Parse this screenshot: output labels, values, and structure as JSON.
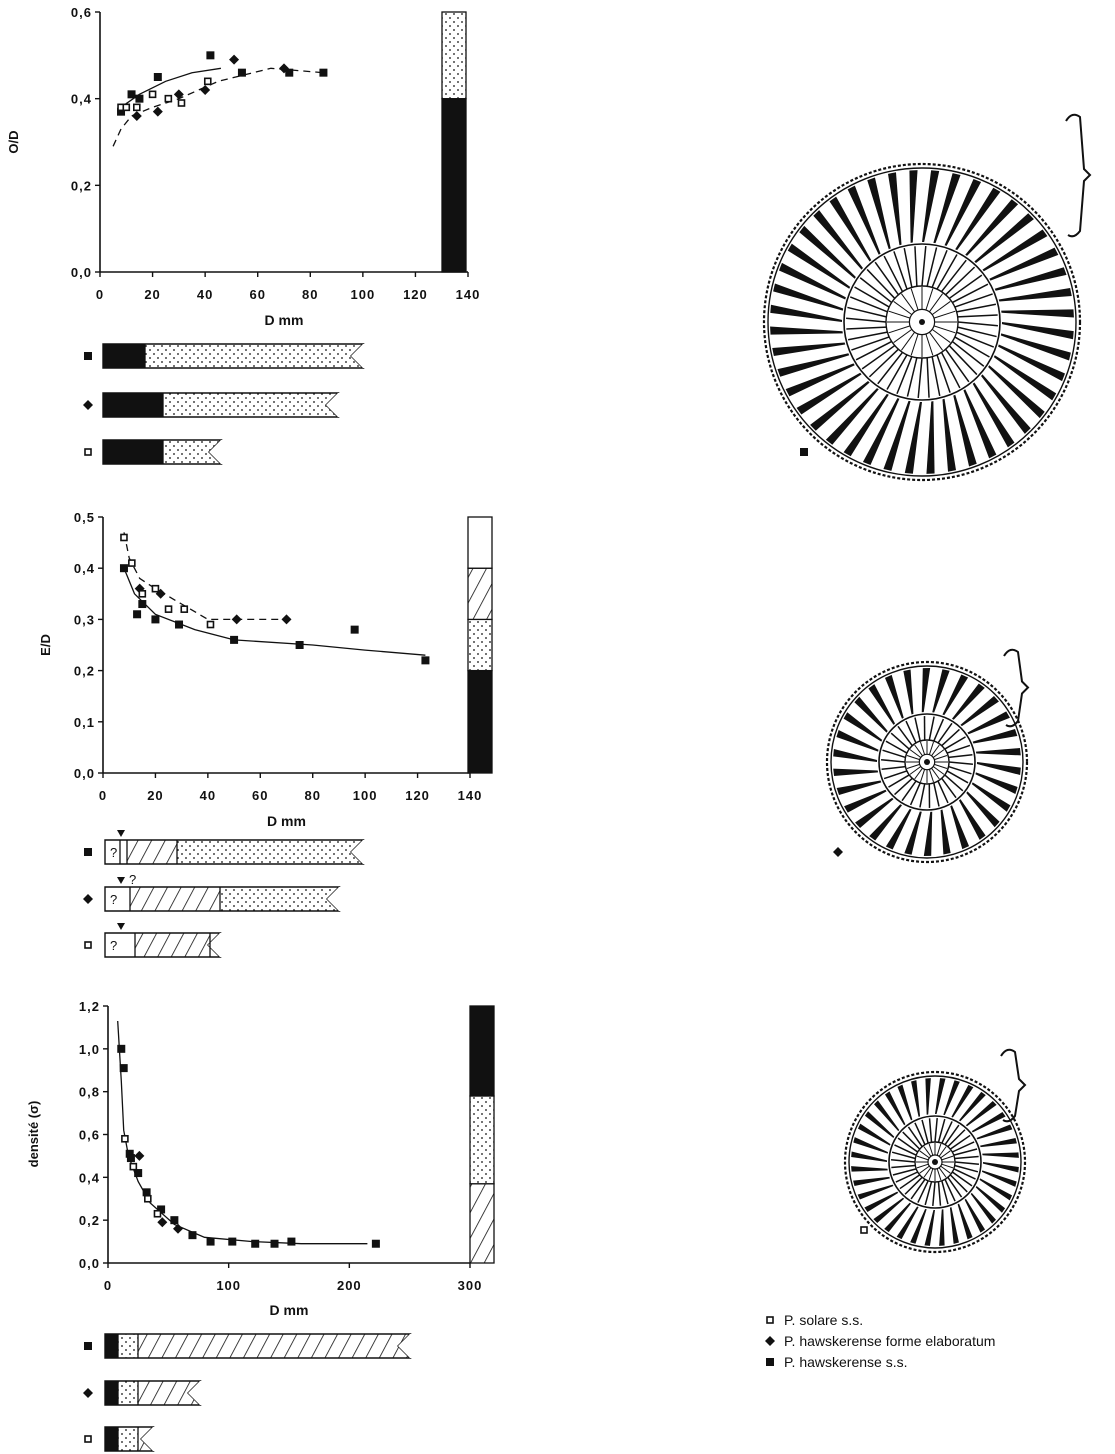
{
  "colors": {
    "ink": "#111111",
    "paper": "#ffffff"
  },
  "chart_data": [
    {
      "type": "scatter",
      "xlabel": "D mm",
      "ylabel": "O/D",
      "xticks": [
        "0",
        "20",
        "40",
        "60",
        "80",
        "100",
        "120",
        "140"
      ],
      "yticks": [
        "0,0",
        "0,2",
        "0,4",
        "0,6"
      ],
      "xlim": [
        0,
        140
      ],
      "ylim": [
        0,
        0.6
      ],
      "series": [
        {
          "marker": "filled-square",
          "points": [
            [
              8,
              0.37
            ],
            [
              12,
              0.41
            ],
            [
              15,
              0.4
            ],
            [
              22,
              0.45
            ],
            [
              42,
              0.5
            ],
            [
              54,
              0.46
            ],
            [
              72,
              0.46
            ],
            [
              85,
              0.46
            ]
          ]
        },
        {
          "marker": "diamond",
          "points": [
            [
              14,
              0.36
            ],
            [
              22,
              0.37
            ],
            [
              30,
              0.41
            ],
            [
              40,
              0.42
            ],
            [
              51,
              0.49
            ],
            [
              70,
              0.47
            ]
          ]
        },
        {
          "marker": "open-square",
          "points": [
            [
              8,
              0.38
            ],
            [
              10,
              0.38
            ],
            [
              14,
              0.38
            ],
            [
              20,
              0.41
            ],
            [
              26,
              0.4
            ],
            [
              31,
              0.39
            ],
            [
              41,
              0.44
            ]
          ]
        }
      ],
      "fit_curves": [
        {
          "style": "dashed",
          "points": [
            [
              5,
              0.29
            ],
            [
              8,
              0.33
            ],
            [
              12,
              0.36
            ],
            [
              20,
              0.38
            ],
            [
              30,
              0.4
            ],
            [
              45,
              0.44
            ],
            [
              65,
              0.47
            ],
            [
              85,
              0.46
            ]
          ]
        },
        {
          "style": "solid",
          "points": [
            [
              8,
              0.38
            ],
            [
              15,
              0.41
            ],
            [
              25,
              0.44
            ],
            [
              35,
              0.46
            ],
            [
              46,
              0.47
            ]
          ]
        }
      ],
      "stratigraphic_column": {
        "segments": [
          {
            "from": 0,
            "to": 0.4,
            "pattern": "black"
          },
          {
            "from": 0.4,
            "to": 0.6,
            "pattern": "stipple"
          }
        ]
      }
    },
    {
      "type": "scatter",
      "xlabel": "D mm",
      "ylabel": "E/D",
      "xticks": [
        "0",
        "20",
        "40",
        "60",
        "80",
        "100",
        "120",
        "140"
      ],
      "yticks": [
        "0,0",
        "0,1",
        "0,2",
        "0,3",
        "0,4",
        "0,5"
      ],
      "xlim": [
        0,
        140
      ],
      "ylim": [
        0,
        0.5
      ],
      "series": [
        {
          "marker": "filled-square",
          "points": [
            [
              8,
              0.4
            ],
            [
              13,
              0.31
            ],
            [
              15,
              0.33
            ],
            [
              20,
              0.3
            ],
            [
              29,
              0.29
            ],
            [
              50,
              0.26
            ],
            [
              75,
              0.25
            ],
            [
              96,
              0.28
            ],
            [
              123,
              0.22
            ]
          ]
        },
        {
          "marker": "diamond",
          "points": [
            [
              14,
              0.36
            ],
            [
              22,
              0.35
            ],
            [
              51,
              0.3
            ],
            [
              70,
              0.3
            ]
          ]
        },
        {
          "marker": "open-square",
          "points": [
            [
              8,
              0.46
            ],
            [
              11,
              0.41
            ],
            [
              15,
              0.35
            ],
            [
              20,
              0.36
            ],
            [
              25,
              0.32
            ],
            [
              31,
              0.32
            ],
            [
              41,
              0.29
            ]
          ]
        }
      ],
      "fit_curves": [
        {
          "style": "dashed",
          "points": [
            [
              8,
              0.47
            ],
            [
              10,
              0.42
            ],
            [
              14,
              0.38
            ],
            [
              20,
              0.36
            ],
            [
              30,
              0.33
            ],
            [
              40,
              0.3
            ],
            [
              55,
              0.3
            ],
            [
              70,
              0.3
            ]
          ]
        },
        {
          "style": "solid",
          "points": [
            [
              8,
              0.4
            ],
            [
              12,
              0.35
            ],
            [
              20,
              0.31
            ],
            [
              35,
              0.28
            ],
            [
              50,
              0.26
            ],
            [
              80,
              0.25
            ],
            [
              100,
              0.24
            ],
            [
              123,
              0.23
            ]
          ]
        }
      ],
      "stratigraphic_column": {
        "segments": [
          {
            "from": 0,
            "to": 0.2,
            "pattern": "black"
          },
          {
            "from": 0.2,
            "to": 0.3,
            "pattern": "stipple"
          },
          {
            "from": 0.3,
            "to": 0.4,
            "pattern": "hatch"
          },
          {
            "from": 0.4,
            "to": 0.5,
            "pattern": "white"
          }
        ]
      }
    },
    {
      "type": "scatter",
      "xlabel": "D mm",
      "ylabel": "densité (σ)",
      "xticks": [
        "0",
        "100",
        "200",
        "300"
      ],
      "yticks": [
        "0,0",
        "0,2",
        "0,4",
        "0,6",
        "0,8",
        "1,0",
        "1,2"
      ],
      "xlim": [
        0,
        300
      ],
      "ylim": [
        0,
        1.2
      ],
      "series": [
        {
          "marker": "filled-square",
          "points": [
            [
              11,
              1.0
            ],
            [
              13,
              0.91
            ],
            [
              18,
              0.51
            ],
            [
              19,
              0.49
            ],
            [
              25,
              0.42
            ],
            [
              32,
              0.33
            ],
            [
              44,
              0.25
            ],
            [
              55,
              0.2
            ],
            [
              70,
              0.13
            ],
            [
              85,
              0.1
            ],
            [
              103,
              0.1
            ],
            [
              122,
              0.09
            ],
            [
              138,
              0.09
            ],
            [
              152,
              0.1
            ],
            [
              222,
              0.09
            ]
          ]
        },
        {
          "marker": "diamond",
          "points": [
            [
              26,
              0.5
            ],
            [
              45,
              0.19
            ],
            [
              58,
              0.16
            ]
          ]
        },
        {
          "marker": "open-square",
          "points": [
            [
              14,
              0.58
            ],
            [
              21,
              0.45
            ],
            [
              33,
              0.3
            ],
            [
              41,
              0.23
            ]
          ]
        }
      ],
      "fit_curves": [
        {
          "style": "solid",
          "points": [
            [
              8,
              1.13
            ],
            [
              11,
              0.85
            ],
            [
              13,
              0.62
            ],
            [
              17,
              0.5
            ],
            [
              25,
              0.38
            ],
            [
              35,
              0.28
            ],
            [
              55,
              0.18
            ],
            [
              80,
              0.12
            ],
            [
              120,
              0.1
            ],
            [
              160,
              0.09
            ],
            [
              215,
              0.09
            ]
          ]
        }
      ],
      "stratigraphic_column": {
        "segments": [
          {
            "from": 0,
            "to": 0.37,
            "pattern": "hatch"
          },
          {
            "from": 0.37,
            "to": 0.78,
            "pattern": "stipple"
          },
          {
            "from": 0.78,
            "to": 1.2,
            "pattern": "black"
          }
        ]
      }
    }
  ],
  "range_bars": [
    {
      "group": "O/D",
      "rows": [
        {
          "marker": "filled-square",
          "end": 260,
          "segments": [
            [
              0,
              42,
              "black"
            ],
            [
              42,
              260,
              "stipple"
            ]
          ],
          "labels": []
        },
        {
          "marker": "diamond",
          "end": 235,
          "segments": [
            [
              0,
              60,
              "black"
            ],
            [
              60,
              235,
              "stipple"
            ]
          ],
          "labels": []
        },
        {
          "marker": "open-square",
          "end": 118,
          "segments": [
            [
              0,
              60,
              "black"
            ],
            [
              60,
              118,
              "stipple"
            ]
          ],
          "labels": []
        }
      ]
    },
    {
      "group": "E/D",
      "rows": [
        {
          "marker": "filled-square",
          "end": 258,
          "segments": [
            [
              0,
              15,
              "white"
            ],
            [
              15,
              22,
              "white"
            ],
            [
              22,
              72,
              "hatch"
            ],
            [
              72,
              258,
              "stipple"
            ]
          ],
          "labels": [
            "?"
          ],
          "arrow": true
        },
        {
          "marker": "diamond",
          "end": 234,
          "segments": [
            [
              0,
              25,
              "white"
            ],
            [
              25,
              115,
              "hatch"
            ],
            [
              115,
              234,
              "stipple"
            ]
          ],
          "labels": [
            "?",
            "?"
          ],
          "arrow": true
        },
        {
          "marker": "open-square",
          "end": 115,
          "segments": [
            [
              0,
              30,
              "white"
            ],
            [
              30,
              105,
              "hatch"
            ],
            [
              105,
              115,
              "white"
            ]
          ],
          "labels": [
            "?"
          ],
          "arrow": true
        }
      ]
    },
    {
      "group": "densite",
      "rows": [
        {
          "marker": "filled-square",
          "end": 305,
          "segments": [
            [
              0,
              13,
              "black"
            ],
            [
              13,
              33,
              "stipple"
            ],
            [
              33,
              305,
              "hatch"
            ]
          ],
          "labels": []
        },
        {
          "marker": "diamond",
          "end": 95,
          "segments": [
            [
              0,
              13,
              "black"
            ],
            [
              13,
              33,
              "stipple"
            ],
            [
              33,
              95,
              "hatch"
            ]
          ],
          "labels": []
        },
        {
          "marker": "open-square",
          "end": 48,
          "segments": [
            [
              0,
              13,
              "black"
            ],
            [
              13,
              33,
              "stipple"
            ],
            [
              33,
              48,
              "hatch"
            ]
          ],
          "labels": []
        }
      ]
    }
  ],
  "ammonites": [
    {
      "marker": "filled-square",
      "ribs": 44
    },
    {
      "marker": "diamond",
      "ribs": 30
    },
    {
      "marker": "open-square",
      "ribs": 36
    }
  ],
  "legend": [
    {
      "marker": "open-square",
      "label": "P. solare s.s."
    },
    {
      "marker": "diamond",
      "label": "P. hawskerense forme elaboratum"
    },
    {
      "marker": "filled-square",
      "label": "P. hawskerense s.s."
    }
  ]
}
